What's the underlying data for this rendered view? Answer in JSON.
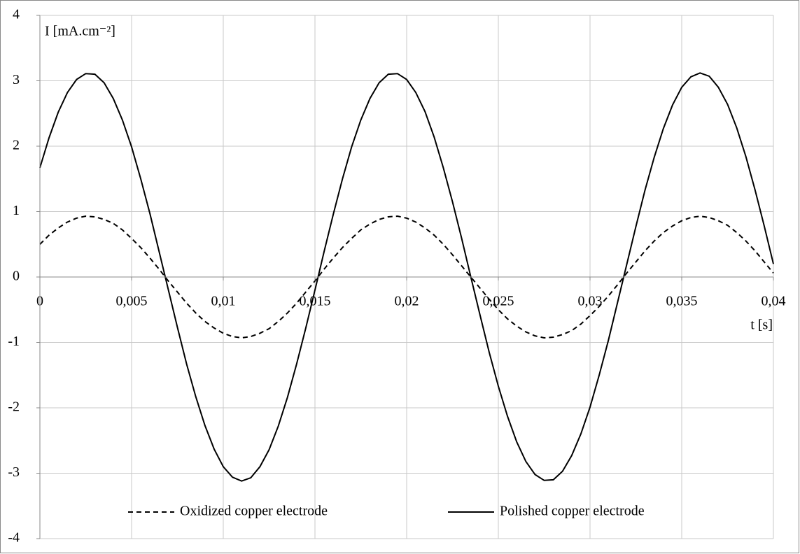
{
  "chart_data": {
    "type": "line",
    "y_label": "I [mA.cm⁻²]",
    "x_label": "t [s]",
    "x": [
      0,
      0.0005,
      0.001,
      0.0015,
      0.002,
      0.0025,
      0.003,
      0.0035,
      0.004,
      0.0045,
      0.005,
      0.0055,
      0.006,
      0.0065,
      0.007,
      0.0075,
      0.008,
      0.0085,
      0.009,
      0.0095,
      0.01,
      0.0105,
      0.011,
      0.0115,
      0.012,
      0.0125,
      0.013,
      0.0135,
      0.014,
      0.0145,
      0.015,
      0.0155,
      0.016,
      0.0165,
      0.017,
      0.0175,
      0.018,
      0.0185,
      0.019,
      0.0195,
      0.02,
      0.0205,
      0.021,
      0.0215,
      0.022,
      0.0225,
      0.023,
      0.0235,
      0.024,
      0.0245,
      0.025,
      0.0255,
      0.026,
      0.0265,
      0.027,
      0.0275,
      0.028,
      0.0285,
      0.029,
      0.0295,
      0.03,
      0.0305,
      0.031,
      0.0315,
      0.032,
      0.0325,
      0.033,
      0.0335,
      0.034,
      0.0345,
      0.035,
      0.0355,
      0.036,
      0.0365,
      0.037,
      0.0375,
      0.038,
      0.0385,
      0.039,
      0.0395,
      0.04
    ],
    "series": [
      {
        "name": "Oxidized copper electrode",
        "color": "#000000",
        "line_style": "dashed",
        "values": [
          0.5,
          0.64,
          0.75,
          0.84,
          0.9,
          0.93,
          0.92,
          0.88,
          0.82,
          0.72,
          0.59,
          0.45,
          0.29,
          0.12,
          -0.06,
          -0.23,
          -0.4,
          -0.55,
          -0.68,
          -0.78,
          -0.86,
          -0.91,
          -0.93,
          -0.91,
          -0.86,
          -0.79,
          -0.68,
          -0.55,
          -0.4,
          -0.23,
          -0.06,
          0.12,
          0.29,
          0.45,
          0.59,
          0.72,
          0.81,
          0.88,
          0.92,
          0.93,
          0.9,
          0.84,
          0.75,
          0.64,
          0.5,
          0.34,
          0.17,
          0,
          -0.17,
          -0.34,
          -0.5,
          -0.64,
          -0.75,
          -0.84,
          -0.9,
          -0.93,
          -0.92,
          -0.88,
          -0.82,
          -0.72,
          -0.59,
          -0.45,
          -0.29,
          -0.12,
          0.06,
          0.23,
          0.4,
          0.55,
          0.68,
          0.78,
          0.86,
          0.91,
          0.93,
          0.91,
          0.86,
          0.79,
          0.68,
          0.55,
          0.4,
          0.23,
          0.06
        ]
      },
      {
        "name": "Polished copper electrode",
        "color": "#000000",
        "line_style": "solid",
        "values": [
          1.67,
          2.13,
          2.52,
          2.82,
          3.02,
          3.11,
          3.1,
          2.97,
          2.73,
          2.4,
          1.99,
          1.5,
          0.97,
          0.39,
          -0.19,
          -0.77,
          -1.33,
          -1.83,
          -2.27,
          -2.63,
          -2.9,
          -3.06,
          -3.12,
          -3.07,
          -2.9,
          -2.64,
          -2.28,
          -1.84,
          -1.33,
          -0.78,
          -0.2,
          0.39,
          0.96,
          1.5,
          1.99,
          2.4,
          2.73,
          2.97,
          3.1,
          3.11,
          3.02,
          2.82,
          2.53,
          2.14,
          1.67,
          1.15,
          0.59,
          0,
          -0.58,
          -1.15,
          -1.67,
          -2.13,
          -2.52,
          -2.82,
          -3.02,
          -3.11,
          -3.1,
          -2.97,
          -2.73,
          -2.4,
          -1.99,
          -1.5,
          -0.97,
          -0.39,
          0.19,
          0.77,
          1.33,
          1.83,
          2.27,
          2.63,
          2.9,
          3.06,
          3.12,
          3.07,
          2.9,
          2.64,
          2.28,
          1.84,
          1.33,
          0.78,
          0.2
        ]
      }
    ],
    "xlim": [
      0,
      0.04
    ],
    "ylim": [
      -4,
      4
    ],
    "xticks": [
      0,
      {
        "value": 0.005,
        "label": "0,005"
      },
      {
        "value": 0.01,
        "label": "0,01"
      },
      {
        "value": 0.015,
        "label": "0,015"
      },
      {
        "value": 0.02,
        "label": "0,02"
      },
      {
        "value": 0.025,
        "label": "0,025"
      },
      {
        "value": 0.03,
        "label": "0,03"
      },
      {
        "value": 0.035,
        "label": "0,035"
      },
      {
        "value": 0.04,
        "label": "0,04"
      }
    ],
    "yticks": [
      -4,
      -3,
      -2,
      -1,
      0,
      1,
      2,
      3,
      4
    ],
    "grid": true,
    "legend": "bottom"
  }
}
